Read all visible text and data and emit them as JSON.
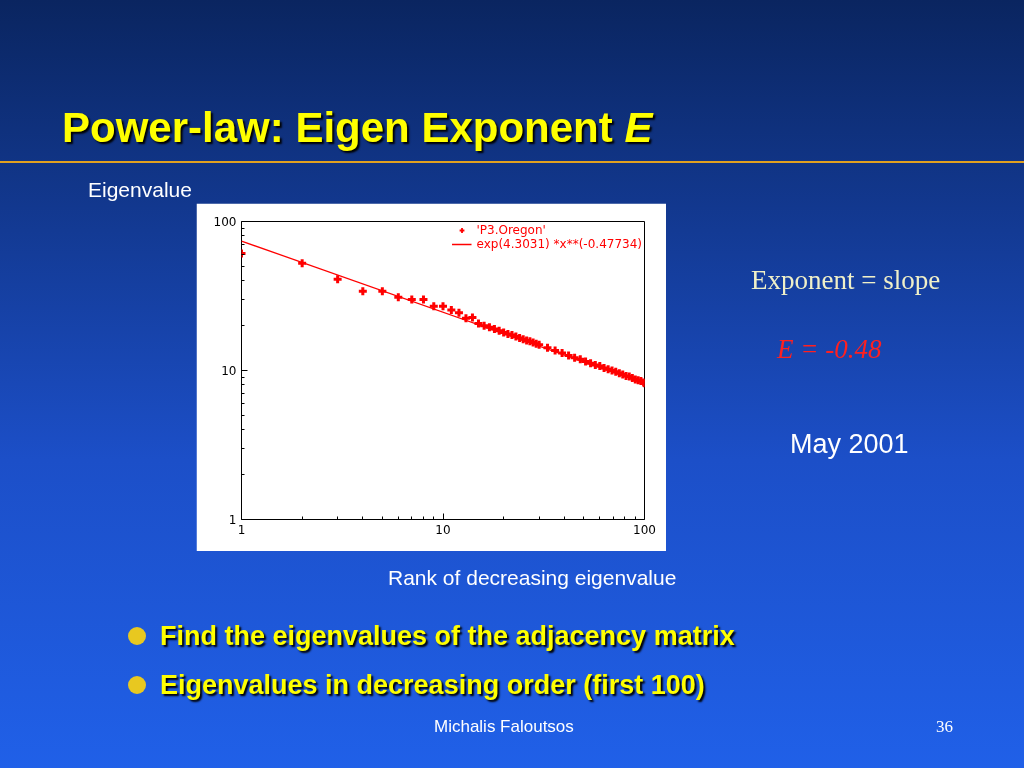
{
  "chart_data": {
    "type": "scatter",
    "title": "Power-law: Eigen Exponent E",
    "xlabel": "Rank of decreasing eigenvalue",
    "ylabel": "Eigenvalue",
    "x": [
      1,
      2,
      3,
      4,
      5,
      6,
      7,
      8,
      9,
      10,
      11,
      12,
      13,
      14,
      15,
      16,
      17,
      18,
      19,
      20,
      21,
      22,
      23,
      24,
      25,
      26,
      27,
      28,
      29,
      30,
      33,
      36,
      39,
      42,
      45,
      48,
      51,
      54,
      57,
      60,
      63,
      66,
      69,
      72,
      75,
      78,
      81,
      84,
      87,
      90,
      93,
      96,
      99,
      100
    ],
    "series": [
      {
        "name": "'P3.Oregon'",
        "type": "scatter",
        "marker": "cross",
        "color": "#ff0000",
        "values": [
          61,
          52.5,
          41,
          34,
          34,
          31,
          30,
          30,
          27,
          27,
          25.5,
          24.4,
          22.4,
          22.7,
          20.7,
          20.0,
          19.5,
          19.0,
          18.5,
          18.0,
          17.6,
          17.3,
          16.9,
          16.5,
          16.2,
          15.9,
          15.7,
          15.4,
          15.1,
          14.9,
          14.2,
          13.6,
          13.1,
          12.6,
          12.2,
          11.9,
          11.5,
          11.2,
          10.9,
          10.7,
          10.4,
          10.2,
          10.0,
          9.8,
          9.6,
          9.4,
          9.2,
          9.1,
          8.9,
          8.7,
          8.6,
          8.5,
          8.3,
          8.2
        ]
      },
      {
        "name": "exp(4.3031) *x**(-0.47734)",
        "type": "line",
        "line_style": "solid",
        "color": "#ff0000",
        "x": [
          1,
          100
        ],
        "values": [
          73.9,
          8.2
        ]
      }
    ],
    "xlim": [
      1,
      100
    ],
    "ylim": [
      1,
      100
    ],
    "xticks": [
      1,
      10,
      100
    ],
    "yticks": [
      1,
      10,
      100
    ],
    "log": "xy",
    "grid": false,
    "legend": "top right",
    "annotations": [
      "Exponent = slope",
      "E = -0.48",
      "May 2001",
      "Find the eigenvalues of the adjacency matrix",
      "Eigenvalues in decreasing order (first 100)",
      "Michalis Faloutsos",
      "36"
    ]
  }
}
